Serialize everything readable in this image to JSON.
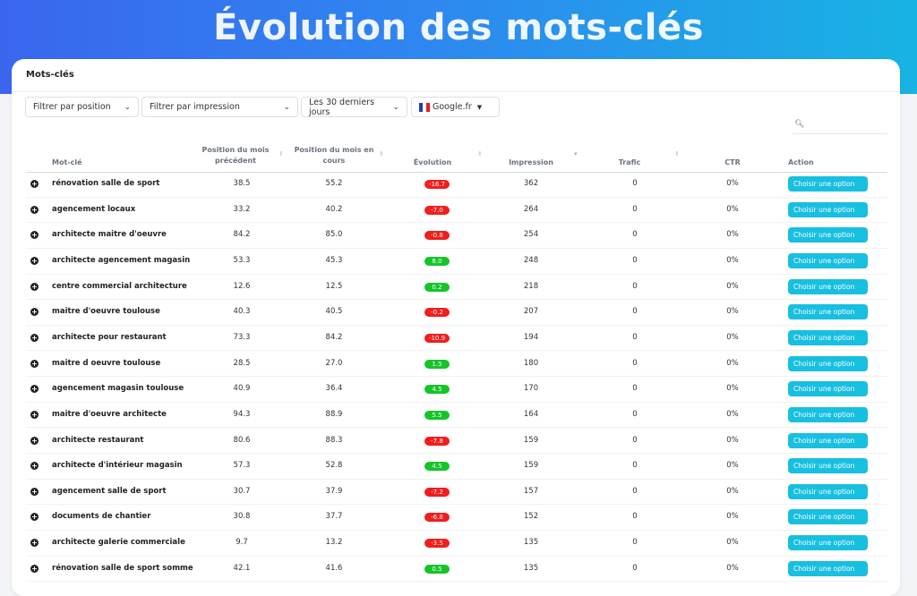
{
  "banner": {
    "title": "Évolution des mots-clés"
  },
  "card": {
    "title": "Mots-clés"
  },
  "filters": {
    "position": "Filtrer par position",
    "impression": "Filtrer par impression",
    "period": "Les 30 derniers jours",
    "engine": "Google.fr"
  },
  "search": {
    "placeholder": ""
  },
  "columns": {
    "keyword": "Mot-clé",
    "prev": "Position du mois précédent",
    "current": "Position du mois en cours",
    "evolution": "Évolution",
    "impression": "Impression",
    "traffic": "Trafic",
    "ctr": "CTR",
    "action": "Action"
  },
  "colors": {
    "negative": "#f21d1d",
    "positive": "#16c42a",
    "action": "#17bfe1"
  },
  "rows": [
    {
      "keyword": "rénovation salle de sport",
      "prev": "38.5",
      "current": "55.2",
      "evolution": "-16.7",
      "impression": "362",
      "traffic": "0",
      "ctr": "0%",
      "action": "Choisir une option"
    },
    {
      "keyword": "agencement locaux",
      "prev": "33.2",
      "current": "40.2",
      "evolution": "-7.0",
      "impression": "264",
      "traffic": "0",
      "ctr": "0%",
      "action": "Choisir une option"
    },
    {
      "keyword": "architecte maitre d'oeuvre",
      "prev": "84.2",
      "current": "85.0",
      "evolution": "-0.8",
      "impression": "254",
      "traffic": "0",
      "ctr": "0%",
      "action": "Choisir une option"
    },
    {
      "keyword": "architecte agencement magasin",
      "prev": "53.3",
      "current": "45.3",
      "evolution": "8.0",
      "impression": "248",
      "traffic": "0",
      "ctr": "0%",
      "action": "Choisir une option"
    },
    {
      "keyword": "centre commercial architecture",
      "prev": "12.6",
      "current": "12.5",
      "evolution": "0.2",
      "impression": "218",
      "traffic": "0",
      "ctr": "0%",
      "action": "Choisir une option"
    },
    {
      "keyword": "maitre d'oeuvre toulouse",
      "prev": "40.3",
      "current": "40.5",
      "evolution": "-0.2",
      "impression": "207",
      "traffic": "0",
      "ctr": "0%",
      "action": "Choisir une option"
    },
    {
      "keyword": "architecte pour restaurant",
      "prev": "73.3",
      "current": "84.2",
      "evolution": "-10.9",
      "impression": "194",
      "traffic": "0",
      "ctr": "0%",
      "action": "Choisir une option"
    },
    {
      "keyword": "maitre d oeuvre toulouse",
      "prev": "28.5",
      "current": "27.0",
      "evolution": "1.5",
      "impression": "180",
      "traffic": "0",
      "ctr": "0%",
      "action": "Choisir une option"
    },
    {
      "keyword": "agencement magasin toulouse",
      "prev": "40.9",
      "current": "36.4",
      "evolution": "4.5",
      "impression": "170",
      "traffic": "0",
      "ctr": "0%",
      "action": "Choisir une option"
    },
    {
      "keyword": "maitre d'oeuvre architecte",
      "prev": "94.3",
      "current": "88.9",
      "evolution": "5.5",
      "impression": "164",
      "traffic": "0",
      "ctr": "0%",
      "action": "Choisir une option"
    },
    {
      "keyword": "architecte restaurant",
      "prev": "80.6",
      "current": "88.3",
      "evolution": "-7.8",
      "impression": "159",
      "traffic": "0",
      "ctr": "0%",
      "action": "Choisir une option"
    },
    {
      "keyword": "architecte d'intérieur magasin",
      "prev": "57.3",
      "current": "52.8",
      "evolution": "4.5",
      "impression": "159",
      "traffic": "0",
      "ctr": "0%",
      "action": "Choisir une option"
    },
    {
      "keyword": "agencement salle de sport",
      "prev": "30.7",
      "current": "37.9",
      "evolution": "-7.2",
      "impression": "157",
      "traffic": "0",
      "ctr": "0%",
      "action": "Choisir une option"
    },
    {
      "keyword": "documents de chantier",
      "prev": "30.8",
      "current": "37.7",
      "evolution": "-6.8",
      "impression": "152",
      "traffic": "0",
      "ctr": "0%",
      "action": "Choisir une option"
    },
    {
      "keyword": "architecte galerie commerciale",
      "prev": "9.7",
      "current": "13.2",
      "evolution": "-3.5",
      "impression": "135",
      "traffic": "0",
      "ctr": "0%",
      "action": "Choisir une option"
    },
    {
      "keyword": "rénovation salle de sport somme",
      "prev": "42.1",
      "current": "41.6",
      "evolution": "0.5",
      "impression": "135",
      "traffic": "0",
      "ctr": "0%",
      "action": "Choisir une option"
    }
  ]
}
